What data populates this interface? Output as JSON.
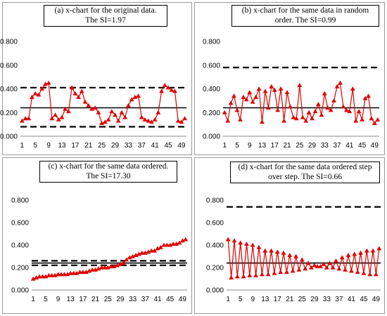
{
  "chart_data": [
    {
      "type": "line",
      "title": "(a) x-chart  for the original data.\nThe SI=1.97",
      "x": [
        1,
        2,
        3,
        4,
        5,
        6,
        7,
        8,
        9,
        10,
        11,
        12,
        13,
        14,
        15,
        16,
        17,
        18,
        19,
        20,
        21,
        22,
        23,
        24,
        25,
        26,
        27,
        28,
        29,
        30,
        31,
        32,
        33,
        34,
        35,
        36,
        37,
        38,
        39,
        40,
        41,
        42,
        43,
        44,
        45,
        46,
        47,
        48,
        49,
        50
      ],
      "series": [
        {
          "values": [
            0.13,
            0.15,
            0.15,
            0.33,
            0.36,
            0.35,
            0.4,
            0.44,
            0.45,
            0.15,
            0.18,
            0.14,
            0.16,
            0.23,
            0.21,
            0.41,
            0.36,
            0.33,
            0.38,
            0.29,
            0.26,
            0.23,
            0.24,
            0.2,
            0.11,
            0.12,
            0.14,
            0.21,
            0.18,
            0.13,
            0.2,
            0.16,
            0.26,
            0.31,
            0.33,
            0.34,
            0.16,
            0.14,
            0.13,
            0.12,
            0.14,
            0.2,
            0.38,
            0.43,
            0.41,
            0.39,
            0.38,
            0.13,
            0.12,
            0.15
          ]
        }
      ],
      "ucl": 0.41,
      "center": 0.24,
      "lcl": 0.08,
      "ylim": [
        0,
        0.8
      ],
      "yticks": [
        "0.000",
        "0.200",
        "0.400",
        "0.600",
        "0.800"
      ],
      "xticks": [
        "1",
        "5",
        "9",
        "13",
        "17",
        "21",
        "25",
        "29",
        "33",
        "37",
        "41",
        "45",
        "49"
      ],
      "color": "#e00000"
    },
    {
      "type": "line",
      "title": "(b) x-chart  for the same data in random\norder. The SI=0.99",
      "x": [
        1,
        2,
        3,
        4,
        5,
        6,
        7,
        8,
        9,
        10,
        11,
        12,
        13,
        14,
        15,
        16,
        17,
        18,
        19,
        20,
        21,
        22,
        23,
        24,
        25,
        26,
        27,
        28,
        29,
        30,
        31,
        32,
        33,
        34,
        35,
        36,
        37,
        38,
        39,
        40,
        41,
        42,
        43,
        44,
        45,
        46,
        47,
        48,
        49,
        50
      ],
      "series": [
        {
          "values": [
            0.2,
            0.13,
            0.28,
            0.34,
            0.22,
            0.14,
            0.33,
            0.31,
            0.37,
            0.29,
            0.33,
            0.4,
            0.12,
            0.38,
            0.24,
            0.42,
            0.39,
            0.22,
            0.4,
            0.13,
            0.37,
            0.25,
            0.16,
            0.15,
            0.43,
            0.16,
            0.13,
            0.2,
            0.15,
            0.21,
            0.27,
            0.18,
            0.36,
            0.24,
            0.22,
            0.3,
            0.42,
            0.45,
            0.25,
            0.22,
            0.21,
            0.4,
            0.13,
            0.21,
            0.14,
            0.32,
            0.34,
            0.15,
            0.11,
            0.14
          ]
        }
      ],
      "ucl": 0.58,
      "center": 0.24,
      "lcl": null,
      "ylim": [
        0,
        0.8
      ],
      "yticks": [
        "0.000",
        "0.200",
        "0.400",
        "0.600",
        "0.800"
      ],
      "xticks": [
        "1",
        "5",
        "9",
        "13",
        "17",
        "21",
        "25",
        "29",
        "33",
        "37",
        "41",
        "45",
        "49"
      ],
      "color": "#e00000"
    },
    {
      "type": "line",
      "title": "(c) x-chart  for the same data ordered.\nThe SI=17.30",
      "x": [
        1,
        2,
        3,
        4,
        5,
        6,
        7,
        8,
        9,
        10,
        11,
        12,
        13,
        14,
        15,
        16,
        17,
        18,
        19,
        20,
        21,
        22,
        23,
        24,
        25,
        26,
        27,
        28,
        29,
        30,
        31,
        32,
        33,
        34,
        35,
        36,
        37,
        38,
        39,
        40,
        41,
        42,
        43,
        44,
        45,
        46,
        47,
        48,
        49,
        50
      ],
      "series": [
        {
          "values": [
            0.1,
            0.11,
            0.12,
            0.12,
            0.12,
            0.13,
            0.13,
            0.13,
            0.14,
            0.14,
            0.14,
            0.14,
            0.15,
            0.15,
            0.15,
            0.16,
            0.16,
            0.16,
            0.17,
            0.18,
            0.18,
            0.19,
            0.2,
            0.2,
            0.2,
            0.21,
            0.21,
            0.22,
            0.23,
            0.24,
            0.27,
            0.29,
            0.3,
            0.31,
            0.32,
            0.33,
            0.33,
            0.34,
            0.35,
            0.35,
            0.37,
            0.38,
            0.4,
            0.4,
            0.4,
            0.41,
            0.41,
            0.42,
            0.44,
            0.45
          ]
        }
      ],
      "ucl": 0.26,
      "center": 0.24,
      "lcl": 0.22,
      "ylim": [
        0,
        0.8
      ],
      "yticks": [
        "0.000",
        "0.200",
        "0.400",
        "0.600",
        "0.800"
      ],
      "xticks": [
        "1",
        "5",
        "9",
        "13",
        "17",
        "21",
        "25",
        "29",
        "33",
        "37",
        "41",
        "45",
        "49"
      ],
      "color": "#e00000"
    },
    {
      "type": "line",
      "title": "(d) x-chart  for the same data ordered step\nover step. The SI=0.66",
      "x": [
        1,
        2,
        3,
        4,
        5,
        6,
        7,
        8,
        9,
        10,
        11,
        12,
        13,
        14,
        15,
        16,
        17,
        18,
        19,
        20,
        21,
        22,
        23,
        24,
        25,
        26,
        27,
        28,
        29,
        30,
        31,
        32,
        33,
        34,
        35,
        36,
        37,
        38,
        39,
        40,
        41,
        42,
        43,
        44,
        45,
        46,
        47,
        48,
        49,
        50
      ],
      "series": [
        {
          "values": [
            0.45,
            0.11,
            0.44,
            0.12,
            0.42,
            0.12,
            0.41,
            0.13,
            0.4,
            0.13,
            0.38,
            0.14,
            0.35,
            0.14,
            0.35,
            0.15,
            0.34,
            0.16,
            0.33,
            0.16,
            0.31,
            0.17,
            0.3,
            0.18,
            0.27,
            0.19,
            0.24,
            0.2,
            0.22,
            0.21,
            0.21,
            0.23,
            0.2,
            0.24,
            0.2,
            0.26,
            0.19,
            0.29,
            0.18,
            0.31,
            0.17,
            0.32,
            0.16,
            0.33,
            0.15,
            0.35,
            0.14,
            0.35,
            0.14,
            0.37
          ]
        }
      ],
      "ucl": 0.74,
      "center": 0.24,
      "lcl": null,
      "ylim": [
        0,
        0.8
      ],
      "yticks": [
        "0.000",
        "0.200",
        "0.400",
        "0.600",
        "0.800"
      ],
      "xticks": [
        "1",
        "5",
        "9",
        "13",
        "17",
        "21",
        "25",
        "29",
        "33",
        "37",
        "41",
        "45",
        "49"
      ],
      "color": "#e00000"
    }
  ]
}
